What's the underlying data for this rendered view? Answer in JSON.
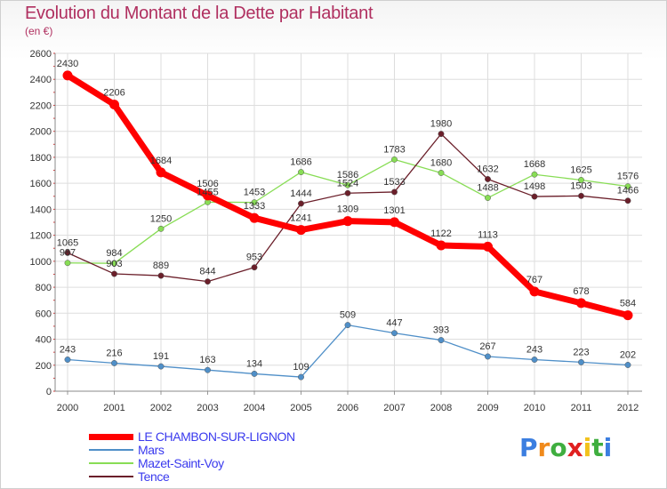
{
  "chart_data": {
    "type": "line",
    "title": "Evolution du Montant de la Dette par Habitant",
    "subtitle": "(en €)",
    "x": [
      "2000",
      "2001",
      "2002",
      "2003",
      "2004",
      "2005",
      "2006",
      "2007",
      "2008",
      "2009",
      "2010",
      "2011",
      "2012"
    ],
    "ylim": [
      0,
      2600
    ],
    "yticks": [
      0,
      200,
      400,
      600,
      800,
      1000,
      1200,
      1400,
      1600,
      1800,
      2000,
      2200,
      2400,
      2600
    ],
    "grid": true,
    "legend_position": "bottom-left",
    "series": [
      {
        "name": "LE CHAMBON-SUR-LIGNON",
        "color": "#ff0000",
        "values": [
          2430,
          2206,
          1684,
          1506,
          1333,
          1241,
          1309,
          1301,
          1122,
          1113,
          767,
          678,
          584
        ]
      },
      {
        "name": "Mars",
        "color": "#4f8fc8",
        "values": [
          243,
          216,
          191,
          163,
          134,
          109,
          509,
          447,
          393,
          267,
          243,
          223,
          202
        ]
      },
      {
        "name": "Mazet-Saint-Voy",
        "color": "#88dd55",
        "values": [
          987,
          984,
          1250,
          1455,
          1453,
          1686,
          1586,
          1783,
          1680,
          1488,
          1668,
          1625,
          1576
        ]
      },
      {
        "name": "Tence",
        "color": "#6b1f2a",
        "values": [
          1065,
          903,
          889,
          844,
          953,
          1444,
          1524,
          1533,
          1980,
          1632,
          1498,
          1503,
          1466
        ]
      }
    ]
  },
  "logo": {
    "letters": [
      "P",
      "r",
      "o",
      "x",
      "i",
      "t",
      "i"
    ],
    "colors": [
      "#3b7ee0",
      "#f08a1c",
      "#3fae3f",
      "#e02020",
      "#f2c21c",
      "#3fae3f",
      "#3b7ee0"
    ]
  }
}
